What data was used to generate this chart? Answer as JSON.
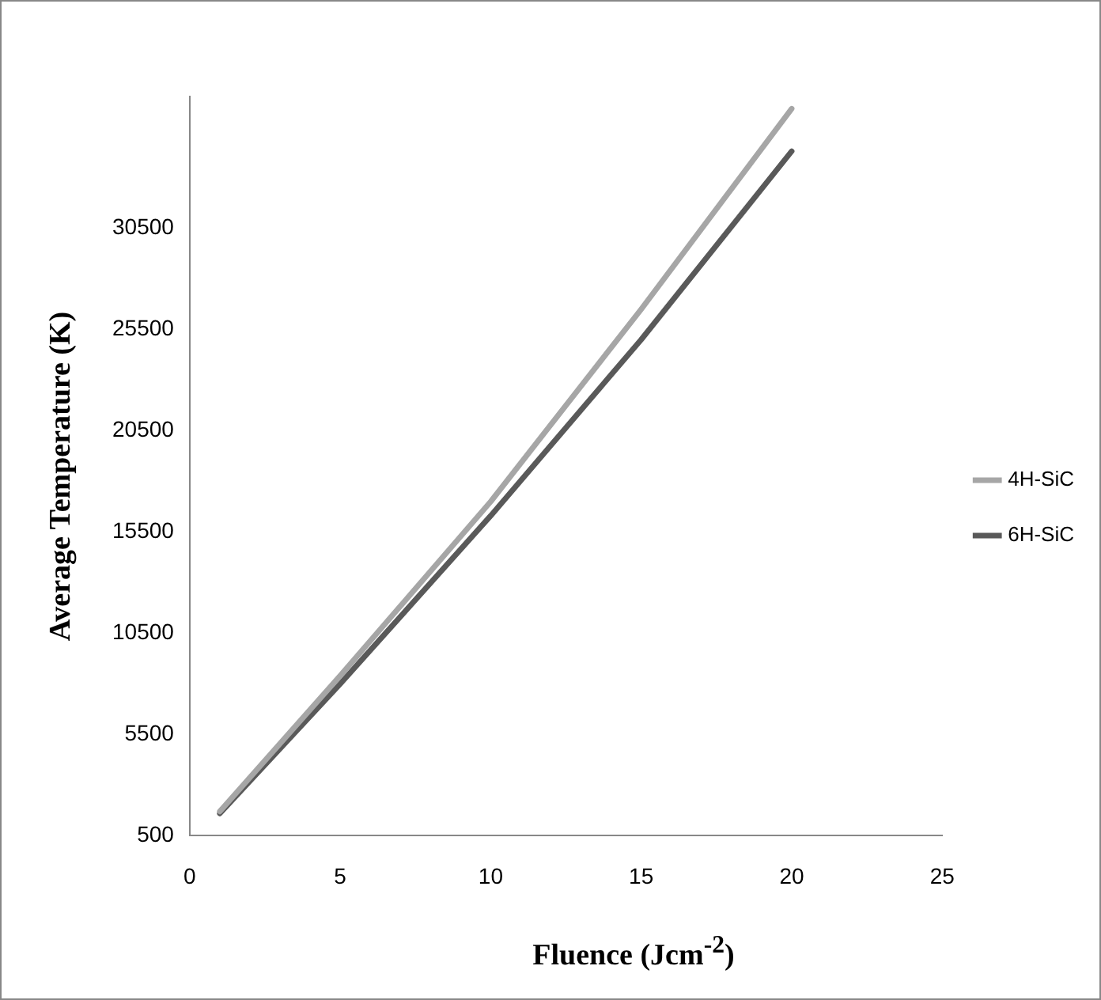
{
  "chart_data": {
    "type": "line",
    "xlabel": "Fluence (Jcm$^{-2}$)",
    "ylabel": "Average Temperature (K)",
    "xlim": [
      0,
      25
    ],
    "xticks": [
      0,
      5,
      10,
      15,
      20,
      25
    ],
    "ylim": [
      500,
      37000
    ],
    "yticks": [
      500,
      5500,
      10500,
      15500,
      20500,
      25500,
      30500
    ],
    "grid": false,
    "legend": "right",
    "marker": "none",
    "line_style": "solid",
    "series": [
      {
        "name": "4H-SiC",
        "color": "#a6a6a6",
        "x": [
          1,
          5,
          10,
          15,
          20
        ],
        "values": [
          1700,
          8400,
          17000,
          26500,
          36400
        ]
      },
      {
        "name": "6H-SiC",
        "color": "#595959",
        "x": [
          1,
          5,
          10,
          15,
          20
        ],
        "values": [
          1600,
          8000,
          16300,
          25000,
          34300
        ]
      }
    ]
  }
}
